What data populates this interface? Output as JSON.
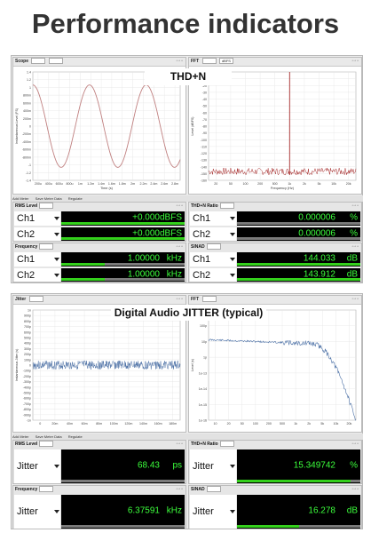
{
  "page_title": "Performance indicators",
  "top": {
    "caption": "THD+N",
    "scope_label": "Scope",
    "fft_label": "FFT",
    "fft_dropdown": "dBFS",
    "add_meter": "Add Meter",
    "save_meter": "Save Meter Data",
    "regulate": "Regulate",
    "scope_axis": {
      "y_ticks": [
        "1.4",
        "1.2",
        "1",
        "800m",
        "600m",
        "400m",
        "200m",
        "0",
        "-200m",
        "-400m",
        "-600m",
        "-800m",
        "-1",
        "-1.2",
        "-1.4"
      ],
      "x_ticks": [
        "200u",
        "400u",
        "600u",
        "800u",
        "1m",
        "1.2m",
        "1.4m",
        "1.6m",
        "1.8m",
        "2m",
        "2.2m",
        "2.4m",
        "2.6m",
        "2.8m"
      ],
      "xlabel": "Time (s)",
      "ylabel": "Instantaneous Level (FS)"
    },
    "fft_axis": {
      "y_ticks": [
        "0",
        "-10",
        "-20",
        "-30",
        "-40",
        "-50",
        "-60",
        "-70",
        "-80",
        "-90",
        "-100",
        "-110",
        "-120",
        "-130",
        "-140",
        "-150",
        "-160"
      ],
      "x_ticks": [
        "20",
        "50",
        "100",
        "200",
        "500",
        "1k",
        "2k",
        "5k",
        "10k",
        "20k"
      ],
      "xlabel": "Frequency (Hz)",
      "ylabel": "Level (dBFS)"
    },
    "meters": [
      {
        "title": "RMS Level",
        "dropdown": "dBFS",
        "rows": [
          {
            "ch": "Ch1",
            "value": "+0.000",
            "unit": "dBFS",
            "bar": 1.0
          },
          {
            "ch": "Ch2",
            "value": "+0.000",
            "unit": "dBFS",
            "bar": 1.0
          }
        ]
      },
      {
        "title": "THD+N Ratio",
        "dropdown": "%",
        "rows": [
          {
            "ch": "Ch1",
            "value": "0.000006",
            "unit": "%",
            "bar": 0.0
          },
          {
            "ch": "Ch2",
            "value": "0.000006",
            "unit": "%",
            "bar": 0.0
          }
        ]
      },
      {
        "title": "Frequency",
        "dropdown": "Hz",
        "rows": [
          {
            "ch": "Ch1",
            "value": "1.00000",
            "unit": "kHz",
            "bar": 0.35
          },
          {
            "ch": "Ch2",
            "value": "1.00000",
            "unit": "kHz",
            "bar": 0.35
          }
        ]
      },
      {
        "title": "SINAD",
        "dropdown": "dB",
        "rows": [
          {
            "ch": "Ch1",
            "value": "144.033",
            "unit": "dB",
            "bar": 1.0
          },
          {
            "ch": "Ch2",
            "value": "143.912",
            "unit": "dB",
            "bar": 1.0
          }
        ]
      }
    ]
  },
  "bottom": {
    "caption": "Digital Audio JITTER (typical)",
    "scope_label": "Jitter",
    "fft_label": "FFT",
    "add_meter": "Add Meter",
    "save_meter": "Save Meter Data",
    "regulate": "Regulate",
    "scope_axis": {
      "y_ticks": [
        "1n",
        "900p",
        "800p",
        "700p",
        "600p",
        "500p",
        "400p",
        "300p",
        "200p",
        "100p",
        "0",
        "-100p",
        "-200p",
        "-300p",
        "-400p",
        "-500p",
        "-600p",
        "-700p",
        "-800p",
        "-900p",
        "-1n"
      ],
      "x_ticks": [
        "0",
        "20m",
        "40m",
        "60m",
        "80m",
        "100m",
        "120m",
        "140m",
        "160m",
        "180m"
      ],
      "ylabel": "Instantaneous Jitter (s)"
    },
    "fft_axis": {
      "y_ticks": [
        "1n",
        "100p",
        "10p",
        "1p",
        "1e-13",
        "1e-14",
        "1e-15",
        "1e-16"
      ],
      "x_ticks": [
        "10",
        "20",
        "50",
        "100",
        "200",
        "500",
        "1k",
        "2k",
        "5k",
        "10k",
        "20k"
      ],
      "ylabel": "Level (s)"
    },
    "meters": [
      {
        "title": "RMS Level",
        "dropdown": "ps",
        "rows": [
          {
            "ch": "Jitter",
            "value": "68.43",
            "unit": "ps",
            "bar": 0.0
          }
        ]
      },
      {
        "title": "THD+N Ratio",
        "dropdown": "%",
        "rows": [
          {
            "ch": "Jitter",
            "value": "15.349742",
            "unit": "%",
            "bar": 0.92
          }
        ]
      },
      {
        "title": "Frequency",
        "dropdown": "Hz",
        "rows": [
          {
            "ch": "Jitter",
            "value": "6.37591",
            "unit": "kHz",
            "bar": 0.0
          }
        ]
      },
      {
        "title": "SINAD",
        "dropdown": "dB",
        "rows": [
          {
            "ch": "Jitter",
            "value": "16.278",
            "unit": "dB",
            "bar": 0.5
          }
        ]
      }
    ]
  },
  "colors": {
    "meter_green": "#3cff3c",
    "bar_green": "#34d01c",
    "thd_trace": "#c08080",
    "fft_red": "#a52a2a",
    "jitter_blue": "#4a6fa5"
  }
}
